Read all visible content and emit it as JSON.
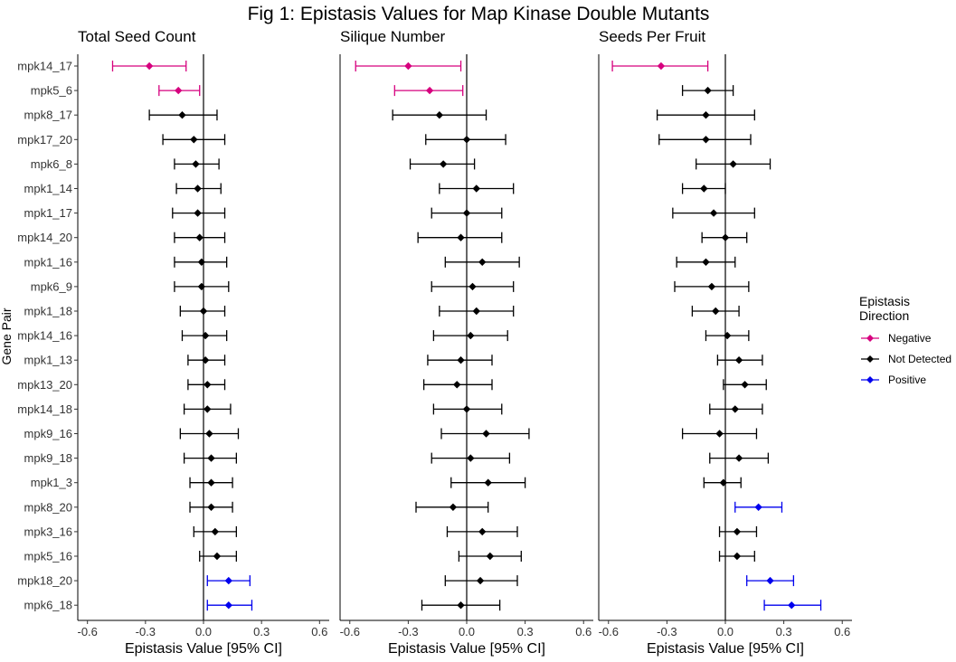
{
  "figure": {
    "title": "Fig 1: Epistasis Values for Map Kinase Double Mutants",
    "y_axis_label": "Gene Pair",
    "x_axis_label": "Epistasis Value [95% CI]"
  },
  "legend": {
    "title_line1": "Epistasis",
    "title_line2": "Direction",
    "position": "right",
    "entries": [
      {
        "label": "Negative",
        "color": "#d6007e"
      },
      {
        "label": "Not Detected",
        "color": "#000000"
      },
      {
        "label": "Positive",
        "color": "#0000ee"
      }
    ]
  },
  "chart_data": [
    {
      "type": "scatter",
      "title": "Total Seed Count",
      "xlabel": "Epistasis Value [95% CI]",
      "ylabel": "Gene Pair",
      "xlim": [
        -0.65,
        0.65
      ],
      "xticks": [
        -0.6,
        -0.3,
        0.0,
        0.3,
        0.6
      ],
      "xtick_labels": [
        "-0.6",
        "-0.3",
        "0.0",
        "0.3",
        "0.6"
      ],
      "grid": false,
      "categories": [
        "mpk14_17",
        "mpk5_6",
        "mpk8_17",
        "mpk17_20",
        "mpk6_8",
        "mpk1_14",
        "mpk1_17",
        "mpk14_20",
        "mpk1_16",
        "mpk6_9",
        "mpk1_18",
        "mpk14_16",
        "mpk1_13",
        "mpk13_20",
        "mpk14_18",
        "mpk9_16",
        "mpk9_18",
        "mpk1_3",
        "mpk8_20",
        "mpk3_16",
        "mpk5_16",
        "mpk18_20",
        "mpk6_18"
      ],
      "points": [
        {
          "gene": "mpk14_17",
          "value": -0.28,
          "ci_low": -0.47,
          "ci_high": -0.09,
          "direction": "Negative"
        },
        {
          "gene": "mpk5_6",
          "value": -0.13,
          "ci_low": -0.23,
          "ci_high": -0.02,
          "direction": "Negative"
        },
        {
          "gene": "mpk8_17",
          "value": -0.11,
          "ci_low": -0.28,
          "ci_high": 0.07,
          "direction": "Not Detected"
        },
        {
          "gene": "mpk17_20",
          "value": -0.05,
          "ci_low": -0.21,
          "ci_high": 0.11,
          "direction": "Not Detected"
        },
        {
          "gene": "mpk6_8",
          "value": -0.04,
          "ci_low": -0.15,
          "ci_high": 0.08,
          "direction": "Not Detected"
        },
        {
          "gene": "mpk1_14",
          "value": -0.03,
          "ci_low": -0.14,
          "ci_high": 0.09,
          "direction": "Not Detected"
        },
        {
          "gene": "mpk1_17",
          "value": -0.03,
          "ci_low": -0.16,
          "ci_high": 0.11,
          "direction": "Not Detected"
        },
        {
          "gene": "mpk14_20",
          "value": -0.02,
          "ci_low": -0.15,
          "ci_high": 0.11,
          "direction": "Not Detected"
        },
        {
          "gene": "mpk1_16",
          "value": -0.01,
          "ci_low": -0.15,
          "ci_high": 0.12,
          "direction": "Not Detected"
        },
        {
          "gene": "mpk6_9",
          "value": -0.01,
          "ci_low": -0.15,
          "ci_high": 0.13,
          "direction": "Not Detected"
        },
        {
          "gene": "mpk1_18",
          "value": 0.0,
          "ci_low": -0.12,
          "ci_high": 0.11,
          "direction": "Not Detected"
        },
        {
          "gene": "mpk14_16",
          "value": 0.01,
          "ci_low": -0.11,
          "ci_high": 0.12,
          "direction": "Not Detected"
        },
        {
          "gene": "mpk1_13",
          "value": 0.01,
          "ci_low": -0.08,
          "ci_high": 0.11,
          "direction": "Not Detected"
        },
        {
          "gene": "mpk13_20",
          "value": 0.02,
          "ci_low": -0.08,
          "ci_high": 0.11,
          "direction": "Not Detected"
        },
        {
          "gene": "mpk14_18",
          "value": 0.02,
          "ci_low": -0.1,
          "ci_high": 0.14,
          "direction": "Not Detected"
        },
        {
          "gene": "mpk9_16",
          "value": 0.03,
          "ci_low": -0.12,
          "ci_high": 0.18,
          "direction": "Not Detected"
        },
        {
          "gene": "mpk9_18",
          "value": 0.04,
          "ci_low": -0.1,
          "ci_high": 0.17,
          "direction": "Not Detected"
        },
        {
          "gene": "mpk1_3",
          "value": 0.04,
          "ci_low": -0.07,
          "ci_high": 0.15,
          "direction": "Not Detected"
        },
        {
          "gene": "mpk8_20",
          "value": 0.04,
          "ci_low": -0.07,
          "ci_high": 0.15,
          "direction": "Not Detected"
        },
        {
          "gene": "mpk3_16",
          "value": 0.06,
          "ci_low": -0.05,
          "ci_high": 0.17,
          "direction": "Not Detected"
        },
        {
          "gene": "mpk5_16",
          "value": 0.07,
          "ci_low": -0.02,
          "ci_high": 0.17,
          "direction": "Not Detected"
        },
        {
          "gene": "mpk18_20",
          "value": 0.13,
          "ci_low": 0.02,
          "ci_high": 0.24,
          "direction": "Positive"
        },
        {
          "gene": "mpk6_18",
          "value": 0.13,
          "ci_low": 0.02,
          "ci_high": 0.25,
          "direction": "Positive"
        }
      ]
    },
    {
      "type": "scatter",
      "title": "Silique Number",
      "xlabel": "Epistasis Value [95% CI]",
      "xlim": [
        -0.65,
        0.65
      ],
      "xticks": [
        -0.6,
        -0.3,
        0.0,
        0.3,
        0.6
      ],
      "xtick_labels": [
        "-0.6",
        "-0.3",
        "0.0",
        "0.3",
        "0.6"
      ],
      "grid": false,
      "points": [
        {
          "gene": "mpk14_17",
          "value": -0.3,
          "ci_low": -0.57,
          "ci_high": -0.03,
          "direction": "Negative"
        },
        {
          "gene": "mpk5_6",
          "value": -0.19,
          "ci_low": -0.37,
          "ci_high": -0.02,
          "direction": "Negative"
        },
        {
          "gene": "mpk8_17",
          "value": -0.14,
          "ci_low": -0.38,
          "ci_high": 0.1,
          "direction": "Not Detected"
        },
        {
          "gene": "mpk17_20",
          "value": 0.0,
          "ci_low": -0.21,
          "ci_high": 0.2,
          "direction": "Not Detected"
        },
        {
          "gene": "mpk6_8",
          "value": -0.12,
          "ci_low": -0.29,
          "ci_high": 0.04,
          "direction": "Not Detected"
        },
        {
          "gene": "mpk1_14",
          "value": 0.05,
          "ci_low": -0.14,
          "ci_high": 0.24,
          "direction": "Not Detected"
        },
        {
          "gene": "mpk1_17",
          "value": 0.0,
          "ci_low": -0.18,
          "ci_high": 0.18,
          "direction": "Not Detected"
        },
        {
          "gene": "mpk14_20",
          "value": -0.03,
          "ci_low": -0.25,
          "ci_high": 0.18,
          "direction": "Not Detected"
        },
        {
          "gene": "mpk1_16",
          "value": 0.08,
          "ci_low": -0.11,
          "ci_high": 0.27,
          "direction": "Not Detected"
        },
        {
          "gene": "mpk6_9",
          "value": 0.03,
          "ci_low": -0.18,
          "ci_high": 0.24,
          "direction": "Not Detected"
        },
        {
          "gene": "mpk1_18",
          "value": 0.05,
          "ci_low": -0.14,
          "ci_high": 0.24,
          "direction": "Not Detected"
        },
        {
          "gene": "mpk14_16",
          "value": 0.02,
          "ci_low": -0.17,
          "ci_high": 0.21,
          "direction": "Not Detected"
        },
        {
          "gene": "mpk1_13",
          "value": -0.03,
          "ci_low": -0.2,
          "ci_high": 0.13,
          "direction": "Not Detected"
        },
        {
          "gene": "mpk13_20",
          "value": -0.05,
          "ci_low": -0.22,
          "ci_high": 0.13,
          "direction": "Not Detected"
        },
        {
          "gene": "mpk14_18",
          "value": 0.0,
          "ci_low": -0.17,
          "ci_high": 0.18,
          "direction": "Not Detected"
        },
        {
          "gene": "mpk9_16",
          "value": 0.1,
          "ci_low": -0.13,
          "ci_high": 0.32,
          "direction": "Not Detected"
        },
        {
          "gene": "mpk9_18",
          "value": 0.02,
          "ci_low": -0.18,
          "ci_high": 0.22,
          "direction": "Not Detected"
        },
        {
          "gene": "mpk1_3",
          "value": 0.11,
          "ci_low": -0.08,
          "ci_high": 0.3,
          "direction": "Not Detected"
        },
        {
          "gene": "mpk8_20",
          "value": -0.07,
          "ci_low": -0.26,
          "ci_high": 0.11,
          "direction": "Not Detected"
        },
        {
          "gene": "mpk3_16",
          "value": 0.08,
          "ci_low": -0.1,
          "ci_high": 0.26,
          "direction": "Not Detected"
        },
        {
          "gene": "mpk5_16",
          "value": 0.12,
          "ci_low": -0.04,
          "ci_high": 0.28,
          "direction": "Not Detected"
        },
        {
          "gene": "mpk18_20",
          "value": 0.07,
          "ci_low": -0.11,
          "ci_high": 0.26,
          "direction": "Not Detected"
        },
        {
          "gene": "mpk6_18",
          "value": -0.03,
          "ci_low": -0.23,
          "ci_high": 0.17,
          "direction": "Not Detected"
        }
      ]
    },
    {
      "type": "scatter",
      "title": "Seeds Per Fruit",
      "xlabel": "Epistasis Value [95% CI]",
      "xlim": [
        -0.65,
        0.65
      ],
      "xticks": [
        -0.6,
        -0.3,
        0.0,
        0.3,
        0.6
      ],
      "xtick_labels": [
        "-0.6",
        "-0.3",
        "0.0",
        "0.3",
        "0.6"
      ],
      "grid": false,
      "points": [
        {
          "gene": "mpk14_17",
          "value": -0.33,
          "ci_low": -0.58,
          "ci_high": -0.09,
          "direction": "Negative"
        },
        {
          "gene": "mpk5_6",
          "value": -0.09,
          "ci_low": -0.22,
          "ci_high": 0.04,
          "direction": "Not Detected"
        },
        {
          "gene": "mpk8_17",
          "value": -0.1,
          "ci_low": -0.35,
          "ci_high": 0.15,
          "direction": "Not Detected"
        },
        {
          "gene": "mpk17_20",
          "value": -0.1,
          "ci_low": -0.34,
          "ci_high": 0.13,
          "direction": "Not Detected"
        },
        {
          "gene": "mpk6_8",
          "value": 0.04,
          "ci_low": -0.15,
          "ci_high": 0.23,
          "direction": "Not Detected"
        },
        {
          "gene": "mpk1_14",
          "value": -0.11,
          "ci_low": -0.22,
          "ci_high": 0.0,
          "direction": "Not Detected"
        },
        {
          "gene": "mpk1_17",
          "value": -0.06,
          "ci_low": -0.27,
          "ci_high": 0.15,
          "direction": "Not Detected"
        },
        {
          "gene": "mpk14_20",
          "value": 0.0,
          "ci_low": -0.12,
          "ci_high": 0.11,
          "direction": "Not Detected"
        },
        {
          "gene": "mpk1_16",
          "value": -0.1,
          "ci_low": -0.25,
          "ci_high": 0.05,
          "direction": "Not Detected"
        },
        {
          "gene": "mpk6_9",
          "value": -0.07,
          "ci_low": -0.26,
          "ci_high": 0.12,
          "direction": "Not Detected"
        },
        {
          "gene": "mpk1_18",
          "value": -0.05,
          "ci_low": -0.17,
          "ci_high": 0.07,
          "direction": "Not Detected"
        },
        {
          "gene": "mpk14_16",
          "value": 0.01,
          "ci_low": -0.1,
          "ci_high": 0.12,
          "direction": "Not Detected"
        },
        {
          "gene": "mpk1_13",
          "value": 0.07,
          "ci_low": -0.04,
          "ci_high": 0.19,
          "direction": "Not Detected"
        },
        {
          "gene": "mpk13_20",
          "value": 0.1,
          "ci_low": -0.01,
          "ci_high": 0.21,
          "direction": "Not Detected"
        },
        {
          "gene": "mpk14_18",
          "value": 0.05,
          "ci_low": -0.08,
          "ci_high": 0.19,
          "direction": "Not Detected"
        },
        {
          "gene": "mpk9_16",
          "value": -0.03,
          "ci_low": -0.22,
          "ci_high": 0.16,
          "direction": "Not Detected"
        },
        {
          "gene": "mpk9_18",
          "value": 0.07,
          "ci_low": -0.08,
          "ci_high": 0.22,
          "direction": "Not Detected"
        },
        {
          "gene": "mpk1_3",
          "value": -0.01,
          "ci_low": -0.11,
          "ci_high": 0.08,
          "direction": "Not Detected"
        },
        {
          "gene": "mpk8_20",
          "value": 0.17,
          "ci_low": 0.05,
          "ci_high": 0.29,
          "direction": "Positive"
        },
        {
          "gene": "mpk3_16",
          "value": 0.06,
          "ci_low": -0.03,
          "ci_high": 0.16,
          "direction": "Not Detected"
        },
        {
          "gene": "mpk5_16",
          "value": 0.06,
          "ci_low": -0.03,
          "ci_high": 0.15,
          "direction": "Not Detected"
        },
        {
          "gene": "mpk18_20",
          "value": 0.23,
          "ci_low": 0.11,
          "ci_high": 0.35,
          "direction": "Positive"
        },
        {
          "gene": "mpk6_18",
          "value": 0.34,
          "ci_low": 0.2,
          "ci_high": 0.49,
          "direction": "Positive"
        }
      ]
    }
  ]
}
